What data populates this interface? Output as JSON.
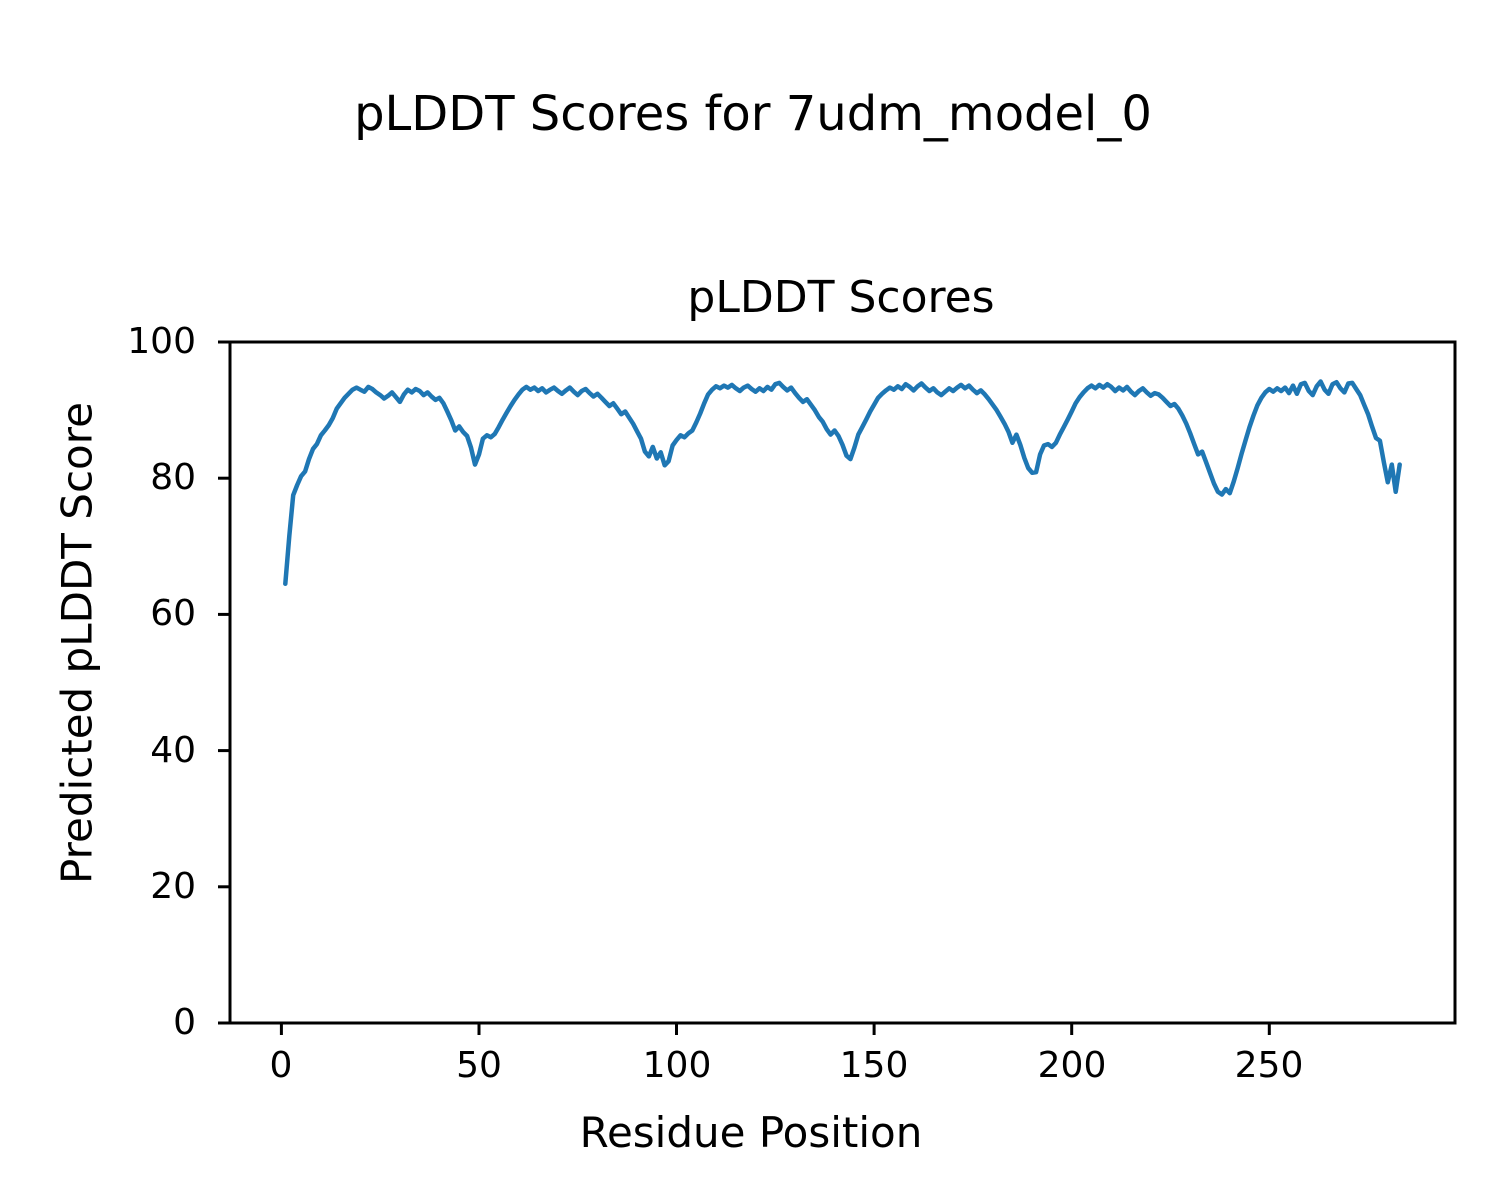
{
  "figure": {
    "suptitle": "pLDDT Scores for 7udm_model_0",
    "background": "#ffffff"
  },
  "chart_data": {
    "type": "line",
    "title": "pLDDT Scores",
    "xlabel": "Residue Position",
    "ylabel": "Predicted pLDDT Score",
    "xlim": [
      -13,
      297
    ],
    "ylim": [
      0,
      100
    ],
    "xticks": [
      "0",
      "50",
      "100",
      "150",
      "200",
      "250"
    ],
    "xtick_values": [
      0,
      50,
      100,
      150,
      200,
      250
    ],
    "yticks": [
      "0",
      "20",
      "40",
      "60",
      "80",
      "100"
    ],
    "ytick_values": [
      0,
      20,
      40,
      60,
      80,
      100
    ],
    "grid": false,
    "legend": null,
    "line_color": "#1f77b4",
    "axis_color": "#000000",
    "x_start": 1,
    "x_step": 1,
    "values": [
      64.5,
      71.5,
      77.5,
      79.0,
      80.3,
      81.0,
      82.8,
      84.3,
      85.0,
      86.3,
      87.0,
      87.8,
      88.8,
      90.2,
      91.0,
      91.8,
      92.4,
      93.0,
      93.3,
      93.0,
      92.7,
      93.4,
      93.1,
      92.6,
      92.2,
      91.7,
      92.1,
      92.6,
      91.9,
      91.2,
      92.3,
      93.0,
      92.6,
      93.1,
      92.8,
      92.2,
      92.6,
      92.0,
      91.5,
      91.8,
      91.0,
      89.8,
      88.5,
      87.0,
      87.6,
      86.8,
      86.2,
      84.5,
      82.0,
      83.5,
      85.8,
      86.3,
      86.0,
      86.5,
      87.5,
      88.6,
      89.6,
      90.6,
      91.5,
      92.3,
      93.0,
      93.4,
      93.0,
      93.3,
      92.8,
      93.2,
      92.6,
      93.0,
      93.3,
      92.8,
      92.4,
      92.9,
      93.3,
      92.7,
      92.2,
      92.8,
      93.1,
      92.5,
      92.0,
      92.4,
      91.8,
      91.2,
      90.6,
      91.0,
      90.2,
      89.4,
      89.8,
      88.9,
      88.0,
      86.9,
      85.8,
      83.9,
      83.2,
      84.6,
      82.9,
      83.8,
      81.9,
      82.5,
      84.8,
      85.6,
      86.3,
      86.0,
      86.6,
      87.0,
      88.2,
      89.5,
      91.0,
      92.3,
      93.0,
      93.5,
      93.2,
      93.6,
      93.3,
      93.7,
      93.2,
      92.8,
      93.3,
      93.6,
      93.1,
      92.7,
      93.2,
      92.8,
      93.4,
      93.0,
      93.8,
      94.0,
      93.4,
      92.9,
      93.3,
      92.5,
      91.8,
      91.2,
      91.6,
      90.8,
      90.0,
      89.0,
      88.3,
      87.2,
      86.4,
      87.0,
      86.2,
      84.9,
      83.3,
      82.8,
      84.5,
      86.4,
      87.5,
      88.6,
      89.8,
      90.8,
      91.8,
      92.4,
      92.9,
      93.3,
      93.0,
      93.5,
      93.1,
      93.8,
      93.4,
      92.9,
      93.5,
      93.9,
      93.3,
      92.8,
      93.2,
      92.6,
      92.2,
      92.7,
      93.2,
      92.8,
      93.3,
      93.7,
      93.2,
      93.6,
      93.0,
      92.5,
      92.9,
      92.3,
      91.6,
      90.8,
      90.0,
      89.0,
      88.0,
      86.8,
      85.2,
      86.4,
      84.9,
      83.0,
      81.5,
      80.8,
      80.9,
      83.5,
      84.8,
      85.0,
      84.6,
      85.2,
      86.4,
      87.5,
      88.6,
      89.8,
      91.0,
      91.9,
      92.6,
      93.2,
      93.6,
      93.2,
      93.7,
      93.3,
      93.8,
      93.4,
      92.8,
      93.3,
      92.9,
      93.4,
      92.7,
      92.2,
      92.8,
      93.2,
      92.6,
      92.1,
      92.5,
      92.3,
      91.8,
      91.2,
      90.6,
      90.9,
      90.2,
      89.2,
      88.0,
      86.6,
      85.0,
      83.5,
      83.9,
      82.4,
      80.8,
      79.2,
      78.0,
      77.6,
      78.4,
      77.8,
      79.5,
      81.5,
      83.6,
      85.6,
      87.5,
      89.2,
      90.7,
      91.8,
      92.6,
      93.1,
      92.7,
      93.2,
      92.8,
      93.3,
      92.5,
      93.6,
      92.4,
      93.8,
      94.0,
      92.8,
      92.2,
      93.5,
      94.2,
      93.0,
      92.4,
      93.8,
      94.1,
      93.2,
      92.6,
      93.9,
      94.0,
      93.1,
      92.2,
      90.8,
      89.4,
      87.6,
      85.9,
      85.5,
      82.3,
      79.4,
      82.0,
      78.0,
      82.0
    ]
  }
}
